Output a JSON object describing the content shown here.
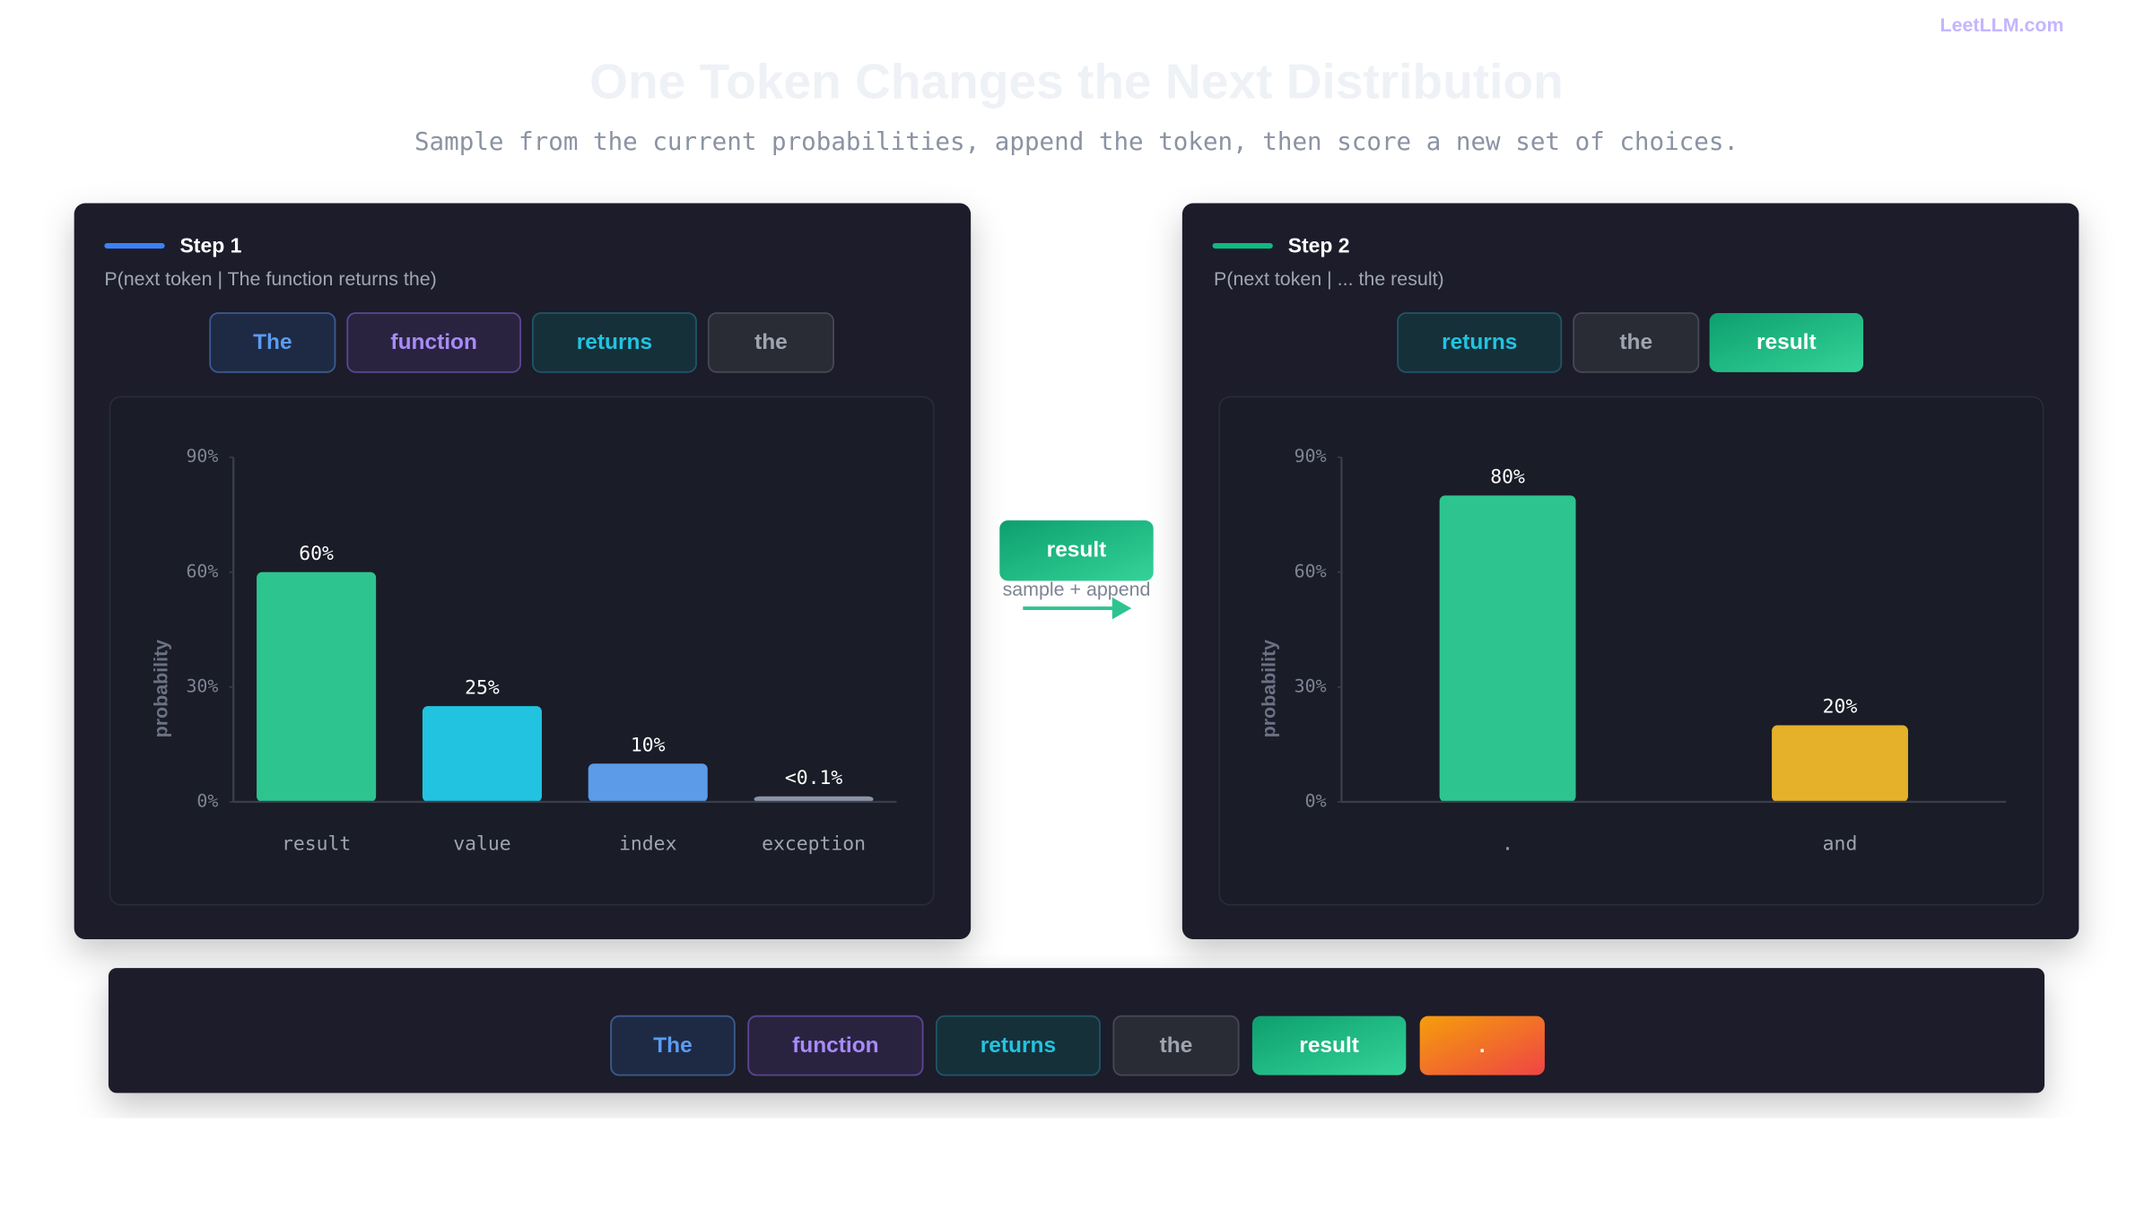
{
  "watermark": "LeetLLM.com",
  "header": {
    "title": "One Token Changes the Next Distribution",
    "subtitle": "Sample from the current probabilities, append the token, then score a new set of choices."
  },
  "steps": [
    {
      "label": "Step 1",
      "context": "P(next token | The function returns the)",
      "tokens": [
        "The",
        "function",
        "returns",
        "the"
      ]
    },
    {
      "label": "Step 2",
      "context": "P(next token | ... the result)",
      "tokens": [
        "returns",
        "the",
        "result"
      ]
    }
  ],
  "transition": {
    "token": "result",
    "caption": "sample + append"
  },
  "sequence": {
    "tokens": [
      "The",
      "function",
      "returns",
      "the",
      "result",
      "."
    ]
  },
  "chart_data": [
    {
      "type": "bar",
      "ylabel": "probability",
      "categories": [
        "result",
        "value",
        "index",
        "exception"
      ],
      "values": [
        60,
        25,
        10,
        0.05
      ],
      "value_labels": [
        "60%",
        "25%",
        "10%",
        "<0.1%"
      ],
      "colors": [
        "#2ec48f",
        "#22c3e0",
        "#5b9be8",
        "#8a94a6"
      ],
      "ylim": [
        0,
        90
      ],
      "yticks": [
        {
          "value": 0,
          "label": "0%"
        },
        {
          "value": 30,
          "label": "30%"
        },
        {
          "value": 60,
          "label": "60%"
        },
        {
          "value": 90,
          "label": "90%"
        }
      ]
    },
    {
      "type": "bar",
      "ylabel": "probability",
      "categories": [
        ".",
        "and"
      ],
      "values": [
        80,
        20
      ],
      "value_labels": [
        "80%",
        "20%"
      ],
      "colors": [
        "#2ec48f",
        "#e6b12a"
      ],
      "ylim": [
        0,
        90
      ],
      "yticks": [
        {
          "value": 0,
          "label": "0%"
        },
        {
          "value": 30,
          "label": "30%"
        },
        {
          "value": 60,
          "label": "60%"
        },
        {
          "value": 90,
          "label": "90%"
        }
      ]
    }
  ]
}
